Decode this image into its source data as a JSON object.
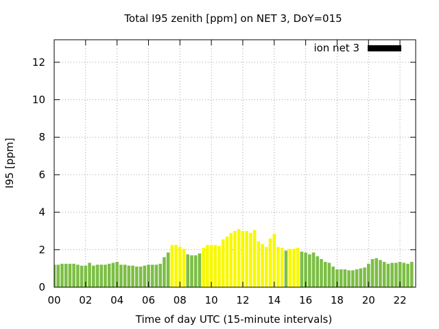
{
  "chart_data": {
    "type": "bar",
    "title": "Total I95 zenith [ppm] on NET 3, DoY=015",
    "xlabel": "Time of day UTC (15-minute intervals)",
    "ylabel": "I95 [ppm]",
    "xlim": [
      0,
      23
    ],
    "ylim": [
      0,
      13.2
    ],
    "x_ticks": [
      "00",
      "02",
      "04",
      "06",
      "08",
      "10",
      "12",
      "14",
      "16",
      "18",
      "20",
      "22"
    ],
    "y_ticks": [
      "0",
      "2",
      "4",
      "6",
      "8",
      "10",
      "12"
    ],
    "grid": true,
    "legend": {
      "position": "top-right",
      "label": "ion net 3",
      "color": "#000000"
    },
    "bar_width_hours": 0.2,
    "colors": {
      "low": "#7cbe45",
      "high": "#f8f800"
    },
    "series": [
      {
        "x": [
          0.0,
          0.25,
          0.5,
          0.75,
          1.0,
          1.25,
          1.5,
          1.75,
          2.0,
          2.25,
          2.5,
          2.75,
          3.0,
          3.25,
          3.5,
          3.75,
          4.0,
          4.25,
          4.5,
          4.75,
          5.0,
          5.25,
          5.5,
          5.75,
          6.0,
          6.25,
          6.5,
          6.75,
          7.0,
          7.25,
          7.5,
          7.75,
          8.0,
          8.25,
          8.5,
          8.75,
          9.0,
          9.25,
          9.5,
          9.75,
          10.0,
          10.25,
          10.5,
          10.75,
          11.0,
          11.25,
          11.5,
          11.75,
          12.0,
          12.25,
          12.5,
          12.75,
          13.0,
          13.25,
          13.5,
          13.75,
          14.0,
          14.25,
          14.5,
          14.75,
          15.0,
          15.25,
          15.5,
          15.75,
          16.0,
          16.25,
          16.5,
          16.75,
          17.0,
          17.25,
          17.5,
          17.75,
          18.0,
          18.25,
          18.5,
          18.75,
          19.0,
          19.25,
          19.5,
          19.75,
          20.0,
          20.25,
          20.5,
          20.75,
          21.0,
          21.25,
          21.5,
          21.75,
          22.0,
          22.25,
          22.5,
          22.75
        ],
        "values": [
          1.2,
          1.2,
          1.25,
          1.25,
          1.25,
          1.25,
          1.2,
          1.15,
          1.15,
          1.3,
          1.15,
          1.2,
          1.2,
          1.2,
          1.25,
          1.3,
          1.35,
          1.2,
          1.2,
          1.15,
          1.15,
          1.1,
          1.1,
          1.15,
          1.2,
          1.2,
          1.2,
          1.25,
          1.6,
          1.85,
          2.25,
          2.25,
          2.15,
          2.05,
          1.75,
          1.7,
          1.7,
          1.8,
          2.1,
          2.25,
          2.25,
          2.25,
          2.2,
          2.55,
          2.7,
          2.9,
          3.0,
          3.1,
          3.0,
          3.0,
          2.9,
          3.05,
          2.45,
          2.3,
          2.15,
          2.6,
          2.85,
          2.15,
          2.1,
          1.95,
          2.05,
          2.05,
          2.1,
          1.9,
          1.85,
          1.75,
          1.85,
          1.65,
          1.5,
          1.35,
          1.3,
          1.1,
          0.95,
          0.95,
          0.95,
          0.9,
          0.9,
          0.95,
          1.0,
          1.05,
          1.25,
          1.5,
          1.55,
          1.45,
          1.35,
          1.25,
          1.3,
          1.3,
          1.35,
          1.3,
          1.25,
          1.35
        ],
        "level": [
          "low",
          "low",
          "low",
          "low",
          "low",
          "low",
          "low",
          "low",
          "low",
          "low",
          "low",
          "low",
          "low",
          "low",
          "low",
          "low",
          "low",
          "low",
          "low",
          "low",
          "low",
          "low",
          "low",
          "low",
          "low",
          "low",
          "low",
          "low",
          "low",
          "low",
          "high",
          "high",
          "high",
          "high",
          "low",
          "low",
          "low",
          "low",
          "high",
          "high",
          "high",
          "high",
          "high",
          "high",
          "high",
          "high",
          "high",
          "high",
          "high",
          "high",
          "high",
          "high",
          "high",
          "high",
          "high",
          "high",
          "high",
          "high",
          "high",
          "low",
          "high",
          "high",
          "high",
          "low",
          "low",
          "low",
          "low",
          "low",
          "low",
          "low",
          "low",
          "low",
          "low",
          "low",
          "low",
          "low",
          "low",
          "low",
          "low",
          "low",
          "low",
          "low",
          "low",
          "low",
          "low",
          "low",
          "low",
          "low",
          "low",
          "low",
          "low",
          "low"
        ]
      }
    ]
  }
}
